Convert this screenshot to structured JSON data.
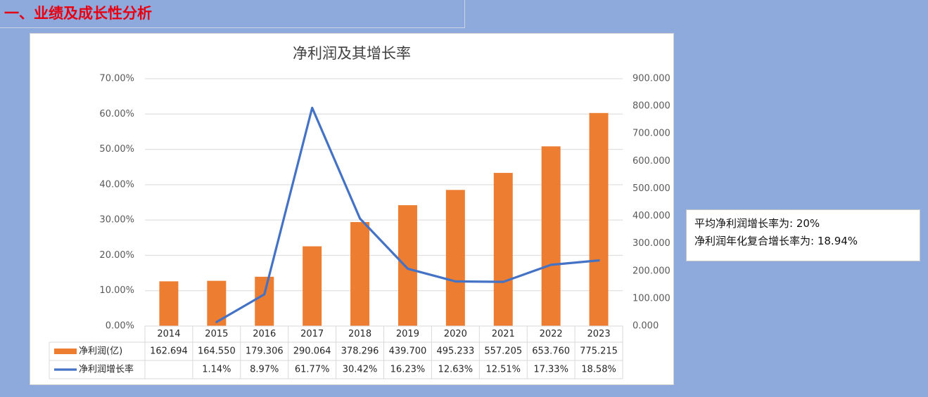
{
  "section": {
    "title": "一、业绩及成长性分析"
  },
  "colors": {
    "background": "#8EA9DB",
    "title_red": "#E60012",
    "bar": "#ED7D31",
    "line": "#4472C4",
    "grid": "#D9D9D9",
    "axis_text": "#595959",
    "chart_title": "#404040"
  },
  "summary": {
    "avg_label": "平均净利润增长率为:",
    "avg_value": "20%",
    "cagr_label": "净利润年化复合增长率为:",
    "cagr_value": "18.94%"
  },
  "chart_data": {
    "type": "bar",
    "title": "净利润及其增长率",
    "xlabel": "",
    "ylabel": "",
    "categories": [
      "2014",
      "2015",
      "2016",
      "2017",
      "2018",
      "2019",
      "2020",
      "2021",
      "2022",
      "2023"
    ],
    "series": [
      {
        "name": "净利润(亿)",
        "type": "bar",
        "axis": "right",
        "values": [
          162.694,
          164.55,
          179.306,
          290.064,
          378.296,
          439.7,
          495.233,
          557.205,
          653.76,
          775.215
        ],
        "labels": [
          "162.694",
          "164.550",
          "179.306",
          "290.064",
          "378.296",
          "439.700",
          "495.233",
          "557.205",
          "653.760",
          "775.215"
        ]
      },
      {
        "name": "净利润增长率",
        "type": "line",
        "axis": "left",
        "values": [
          null,
          1.14,
          8.97,
          61.77,
          30.42,
          16.23,
          12.63,
          12.51,
          17.33,
          18.58
        ],
        "labels": [
          "",
          "1.14%",
          "8.97%",
          "61.77%",
          "30.42%",
          "16.23%",
          "12.63%",
          "12.51%",
          "17.33%",
          "18.58%"
        ]
      }
    ],
    "left_axis": {
      "min": 0,
      "max": 70,
      "ticks": [
        "0.00%",
        "10.00%",
        "20.00%",
        "30.00%",
        "40.00%",
        "50.00%",
        "60.00%",
        "70.00%"
      ]
    },
    "right_axis": {
      "min": 0,
      "max": 900,
      "ticks": [
        "0.000",
        "100.000",
        "200.000",
        "300.000",
        "400.000",
        "500.000",
        "600.000",
        "700.000",
        "800.000",
        "900.000"
      ]
    },
    "grid": true,
    "legend": "data-table"
  }
}
